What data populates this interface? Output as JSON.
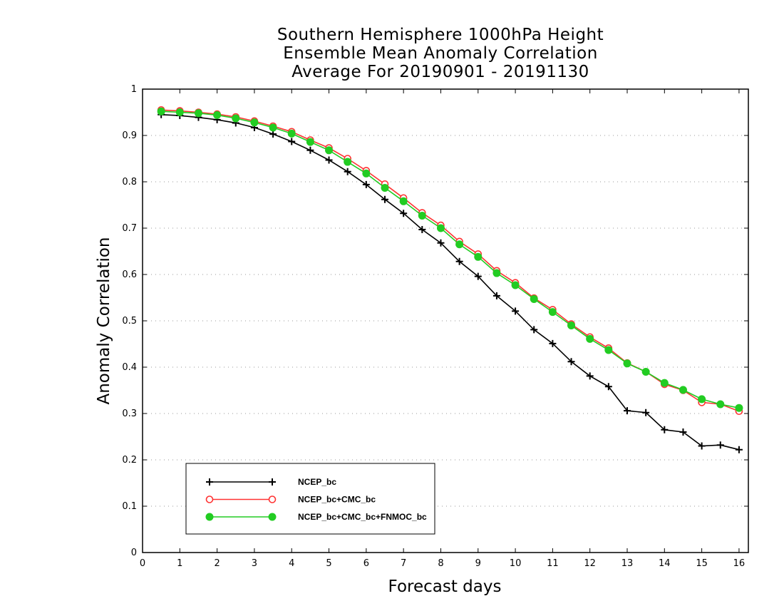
{
  "chart_data": {
    "type": "line",
    "title_lines": [
      "Southern Hemisphere 1000hPa Height",
      "Ensemble Mean Anomaly Correlation",
      "Average For 20190901 - 20191130"
    ],
    "xlabel": "Forecast days",
    "ylabel": "Anomaly Correlation",
    "xlim": [
      0,
      16.25
    ],
    "ylim": [
      0,
      1
    ],
    "x_ticks": [
      0,
      1,
      2,
      3,
      4,
      5,
      6,
      7,
      8,
      9,
      10,
      11,
      12,
      13,
      14,
      15,
      16
    ],
    "y_ticks": [
      0,
      0.1,
      0.2,
      0.3,
      0.4,
      0.5,
      0.6,
      0.7,
      0.8,
      0.9,
      1
    ],
    "y_tick_labels": [
      "0",
      "0.1",
      "0.2",
      "0.3",
      "0.4",
      "0.5",
      "0.6",
      "0.7",
      "0.8",
      "0.9",
      "1"
    ],
    "grid": "horizontal-dotted",
    "legend_position": "bottom-left",
    "x": [
      0.5,
      1,
      1.5,
      2,
      2.5,
      3,
      3.5,
      4,
      4.5,
      5,
      5.5,
      6,
      6.5,
      7,
      7.5,
      8,
      8.5,
      9,
      9.5,
      10,
      10.5,
      11,
      11.5,
      12,
      12.5,
      13,
      13.5,
      14,
      14.5,
      15,
      15.5,
      16
    ],
    "series": [
      {
        "name": "NCEP_bc",
        "color": "#000000",
        "marker": "plus",
        "values": [
          0.945,
          0.943,
          0.939,
          0.934,
          0.927,
          0.917,
          0.903,
          0.887,
          0.868,
          0.847,
          0.822,
          0.794,
          0.762,
          0.732,
          0.697,
          0.668,
          0.628,
          0.596,
          0.554,
          0.521,
          0.481,
          0.451,
          0.412,
          0.381,
          0.358,
          0.306,
          0.302,
          0.265,
          0.26,
          0.23,
          0.232,
          0.222
        ]
      },
      {
        "name": "NCEP_bc+CMC_bc",
        "color": "#ff3333",
        "marker": "open-circle",
        "values": [
          0.955,
          0.953,
          0.95,
          0.946,
          0.94,
          0.931,
          0.92,
          0.908,
          0.89,
          0.873,
          0.85,
          0.824,
          0.795,
          0.765,
          0.733,
          0.706,
          0.671,
          0.644,
          0.608,
          0.582,
          0.549,
          0.524,
          0.493,
          0.465,
          0.441,
          0.409,
          0.39,
          0.363,
          0.35,
          0.324,
          0.32,
          0.305
        ]
      },
      {
        "name": "NCEP_bc+CMC_bc+FNMOC_bc",
        "color": "#22cc22",
        "marker": "filled-circle",
        "values": [
          0.952,
          0.95,
          0.948,
          0.944,
          0.937,
          0.928,
          0.917,
          0.904,
          0.886,
          0.868,
          0.843,
          0.818,
          0.787,
          0.758,
          0.727,
          0.7,
          0.665,
          0.638,
          0.603,
          0.577,
          0.547,
          0.519,
          0.49,
          0.461,
          0.437,
          0.408,
          0.39,
          0.366,
          0.351,
          0.331,
          0.32,
          0.312
        ]
      }
    ]
  }
}
